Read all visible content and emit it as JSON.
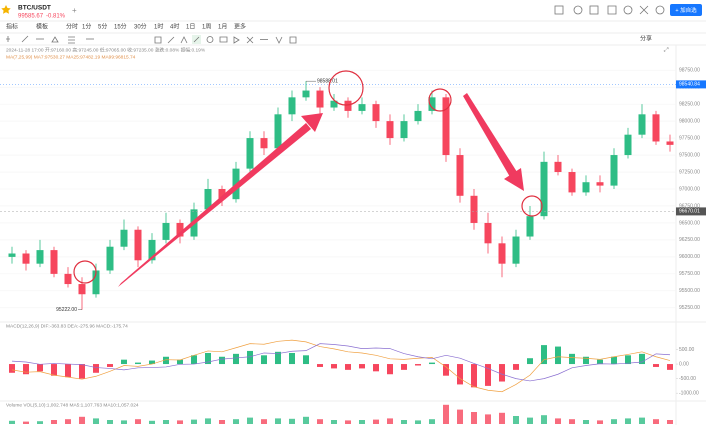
{
  "header": {
    "symbol": "BTC/USDT",
    "price": "99585.67",
    "change": "-0.81%",
    "add_tab": "+",
    "button": "+ 加自选",
    "share": "分享"
  },
  "toolbar": {
    "items": [
      "指标",
      "模板",
      "分时",
      "1分",
      "5分",
      "15分",
      "30分",
      "1时",
      "4时",
      "1日",
      "1周",
      "1月",
      "更多"
    ]
  },
  "chart_data": [
    {
      "type": "candlestick",
      "info": "2024-11-28 17:00  开:97160.00  高:97245.00  低:97065.00  收:97235.00  涨跌:0.08%  振幅:0.19%",
      "ma_info": "MA(7,25,99)  MA7:97530.27  MA25:97482.19  MA99:96815.74",
      "up_color": "#2ebd85",
      "down_color": "#f6465d",
      "open": [
        96000,
        96050,
        95900,
        96100,
        95750,
        95600,
        95450,
        95800,
        96150,
        96400,
        95950,
        96250,
        96500,
        96300,
        96700,
        97000,
        96850,
        97300,
        97750,
        97600,
        98100,
        98350,
        98450,
        98200,
        98300,
        98150,
        98250,
        98000,
        97750,
        98000,
        98150,
        98350,
        97500,
        96900,
        96500,
        96200,
        95900,
        96300,
        96600,
        97400,
        97250,
        96950,
        97100,
        97050,
        97500,
        97800,
        98100,
        97700
      ],
      "high": [
        96150,
        96100,
        96250,
        96150,
        95850,
        95700,
        95900,
        96250,
        96550,
        96450,
        96350,
        96650,
        96550,
        96800,
        97150,
        97050,
        97400,
        97850,
        97850,
        98200,
        98450,
        98588.01,
        98500,
        98400,
        98350,
        98350,
        98300,
        98100,
        98100,
        98250,
        98450,
        98400,
        97600,
        97000,
        96650,
        96300,
        96400,
        96750,
        97550,
        97500,
        97300,
        97200,
        97200,
        97600,
        97900,
        98250,
        98150,
        97800
      ],
      "low": [
        95900,
        95800,
        95850,
        95700,
        95550,
        95222,
        95400,
        95750,
        96100,
        95850,
        95900,
        96200,
        96200,
        96250,
        96650,
        96750,
        96800,
        97250,
        97500,
        97550,
        98000,
        98300,
        98100,
        98150,
        98050,
        98100,
        97900,
        97650,
        97700,
        97950,
        98100,
        97400,
        96800,
        96400,
        96050,
        95700,
        95850,
        96250,
        96550,
        97200,
        96900,
        96900,
        96950,
        97000,
        97450,
        97750,
        97650,
        97550
      ],
      "close": [
        96050,
        95900,
        96100,
        95750,
        95600,
        95450,
        95800,
        96150,
        96400,
        95950,
        96250,
        96500,
        96300,
        96700,
        97000,
        96850,
        97300,
        97750,
        97600,
        98100,
        98350,
        98450,
        98200,
        98300,
        98150,
        98250,
        98000,
        97750,
        98000,
        98150,
        98350,
        97500,
        96900,
        96500,
        96200,
        95900,
        96300,
        96600,
        97400,
        97250,
        96950,
        97100,
        97050,
        97500,
        97800,
        98100,
        97700,
        97650
      ],
      "ylim": [
        95100,
        98900
      ],
      "yticks": [
        {
          "value": 95250,
          "label": "95250.00"
        },
        {
          "value": 95500,
          "label": "95500.00"
        },
        {
          "value": 95750,
          "label": "95750.00"
        },
        {
          "value": 96000,
          "label": "96000.00"
        },
        {
          "value": 96250,
          "label": "96250.00"
        },
        {
          "value": 96500,
          "label": "96500.00"
        },
        {
          "value": 96750,
          "label": "96750.00"
        },
        {
          "value": 97000,
          "label": "97000.00"
        },
        {
          "value": 97250,
          "label": "97250.00"
        },
        {
          "value": 97500,
          "label": "97500.00"
        },
        {
          "value": 97750,
          "label": "97750.00"
        },
        {
          "value": 98000,
          "label": "98000.00"
        },
        {
          "value": 98250,
          "label": "98250.00"
        },
        {
          "value": 98500,
          "label": "98500.00"
        },
        {
          "value": 98750,
          "label": "98750.00"
        }
      ],
      "last_price": 98540.84,
      "crosshair_price": 96670.01,
      "max_label": "98588.01",
      "min_label": "95222.00",
      "grid": true
    },
    {
      "type": "macd",
      "title": "MACD(12,26,9)  DIF:-363.83  DEA:-275.96  MACD:-175.74",
      "hist": [
        -300,
        -350,
        -250,
        -400,
        -450,
        -500,
        -300,
        -100,
        150,
        50,
        120,
        250,
        150,
        300,
        380,
        250,
        350,
        450,
        300,
        420,
        380,
        300,
        -100,
        -150,
        -200,
        -150,
        -250,
        -350,
        -200,
        -50,
        50,
        -400,
        -700,
        -800,
        -750,
        -600,
        -200,
        200,
        650,
        600,
        350,
        250,
        150,
        250,
        300,
        350,
        -100,
        -200
      ],
      "dif": [
        -200,
        -280,
        -260,
        -380,
        -450,
        -520,
        -420,
        -250,
        -50,
        -80,
        0,
        150,
        140,
        300,
        450,
        420,
        560,
        700,
        680,
        780,
        820,
        760,
        600,
        520,
        420,
        380,
        300,
        180,
        160,
        200,
        230,
        -100,
        -500,
        -780,
        -900,
        -950,
        -700,
        -380,
        150,
        250,
        220,
        200,
        160,
        250,
        330,
        420,
        250,
        120
      ],
      "dea": [
        100,
        70,
        -10,
        20,
        0,
        -20,
        -120,
        -150,
        -200,
        -130,
        -120,
        -100,
        -10,
        0,
        70,
        170,
        210,
        250,
        380,
        360,
        440,
        460,
        700,
        670,
        620,
        530,
        550,
        530,
        360,
        250,
        180,
        300,
        200,
        20,
        -150,
        -350,
        -500,
        -580,
        -500,
        -350,
        -130,
        -50,
        10,
        0,
        30,
        70,
        350,
        320
      ],
      "dif_color": "#f0a040",
      "dea_color": "#8a6fd1",
      "ylim": [
        -1200,
        1100
      ],
      "yticks": [
        {
          "value": 500,
          "label": "500.00"
        },
        {
          "value": 0,
          "label": "0.00"
        },
        {
          "value": -500,
          "label": "-500.00"
        },
        {
          "value": -1000,
          "label": "-1000.00"
        }
      ]
    },
    {
      "type": "volume",
      "title": "Volume  VOL(5,10):1,002.748  MA5:1,107.763  MA10:1,057.024",
      "values": [
        400,
        300,
        350,
        500,
        600,
        900,
        700,
        500,
        450,
        600,
        400,
        500,
        450,
        550,
        700,
        500,
        600,
        800,
        600,
        700,
        650,
        900,
        600,
        500,
        450,
        500,
        550,
        700,
        500,
        450,
        600,
        2400,
        1800,
        1500,
        1200,
        1400,
        1000,
        800,
        1100,
        700,
        600,
        500,
        450,
        600,
        700,
        800,
        600,
        500
      ],
      "ylim": [
        0,
        2500
      ]
    }
  ]
}
